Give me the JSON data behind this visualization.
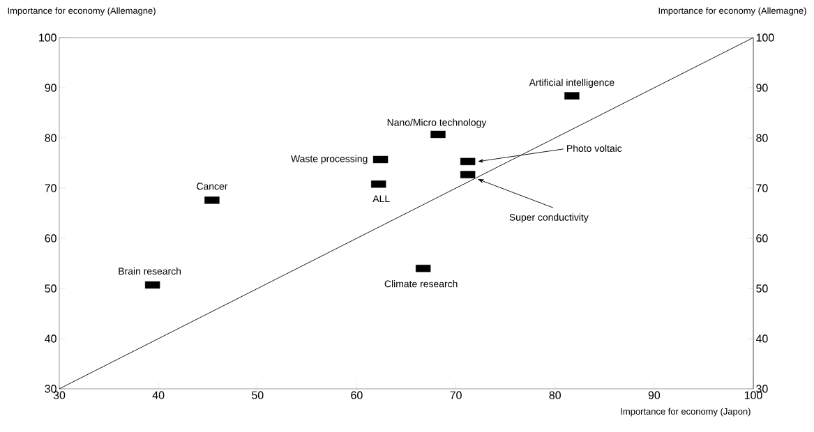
{
  "chart_data": {
    "type": "scatter",
    "xlabel": "Importance for economy (Japon)",
    "ylabel": "Importance for economy (Allemagne)",
    "y2label": "Importance for economy (Allemagne)",
    "xlim": [
      30,
      100
    ],
    "ylim": [
      30,
      100
    ],
    "y2lim": [
      30,
      100
    ],
    "xticks": [
      30,
      40,
      50,
      60,
      70,
      80,
      90,
      100
    ],
    "yticks": [
      30,
      40,
      50,
      60,
      70,
      80,
      90,
      100
    ],
    "y2ticks": [
      30,
      40,
      50,
      60,
      70,
      80,
      90,
      100
    ],
    "series": [
      {
        "color": "#000000",
        "marker": "square",
        "x": [
          81.7,
          68.2,
          62.4,
          71.2,
          71.2,
          62.2,
          45.4,
          39.4,
          66.7
        ],
        "values": [
          88.4,
          80.7,
          75.7,
          75.3,
          72.7,
          70.8,
          67.6,
          50.7,
          54.0
        ]
      },
      {
        "type": "line",
        "color": "#000000",
        "marker": "none",
        "line_style": "solid",
        "x": [
          30,
          100
        ],
        "values": [
          30,
          100
        ]
      }
    ],
    "annotations": [
      {
        "text": "Artificial intelligence",
        "x": 81.7,
        "y": 88.4
      },
      {
        "text": "Nano/Micro technology",
        "x": 68.2,
        "y": 80.7
      },
      {
        "text": "Waste processing",
        "x": 62.4,
        "y": 75.7
      },
      {
        "text": "Photo voltaic",
        "x": 72.2,
        "y": 75.3
      },
      {
        "text": "Super conductivity",
        "x": 72.2,
        "y": 71.8
      },
      {
        "text": "ALL",
        "x": 62.2,
        "y": 70.8
      },
      {
        "text": "Cancer",
        "x": 45.4,
        "y": 67.6
      },
      {
        "text": "Brain research",
        "x": 39.4,
        "y": 50.7
      },
      {
        "text": "Climate research",
        "x": 66.7,
        "y": 54.0
      }
    ]
  }
}
